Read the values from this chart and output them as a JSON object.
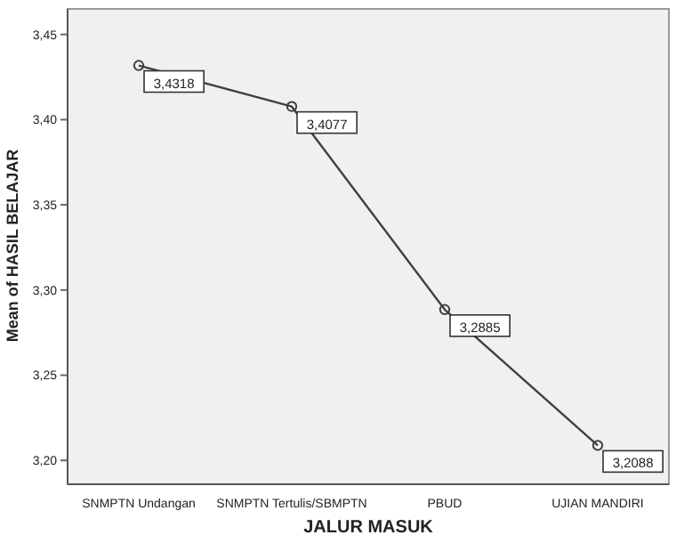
{
  "chart_data": {
    "type": "line",
    "xlabel": "JALUR MASUK",
    "ylabel": "Mean of HASIL BELAJAR",
    "categories": [
      "SNMPTN Undangan",
      "SNMPTN Tertulis/SBMPTN",
      "PBUD",
      "UJIAN MANDIRI"
    ],
    "series": [
      {
        "color": "#404040",
        "values": [
          3.4318,
          3.4077,
          3.2885,
          3.2088
        ],
        "value_labels": [
          "3,4318",
          "3,4077",
          "3,2885",
          "3,2088"
        ]
      }
    ],
    "ylim": [
      3.186,
      3.465
    ],
    "yticks": [
      {
        "value": 3.2,
        "label": "3,20"
      },
      {
        "value": 3.25,
        "label": "3,25"
      },
      {
        "value": 3.3,
        "label": "3,30"
      },
      {
        "value": 3.35,
        "label": "3,35"
      },
      {
        "value": 3.4,
        "label": "3,40"
      },
      {
        "value": 3.45,
        "label": "3,45"
      }
    ],
    "marker": "circle",
    "grid": false,
    "legend": false
  }
}
